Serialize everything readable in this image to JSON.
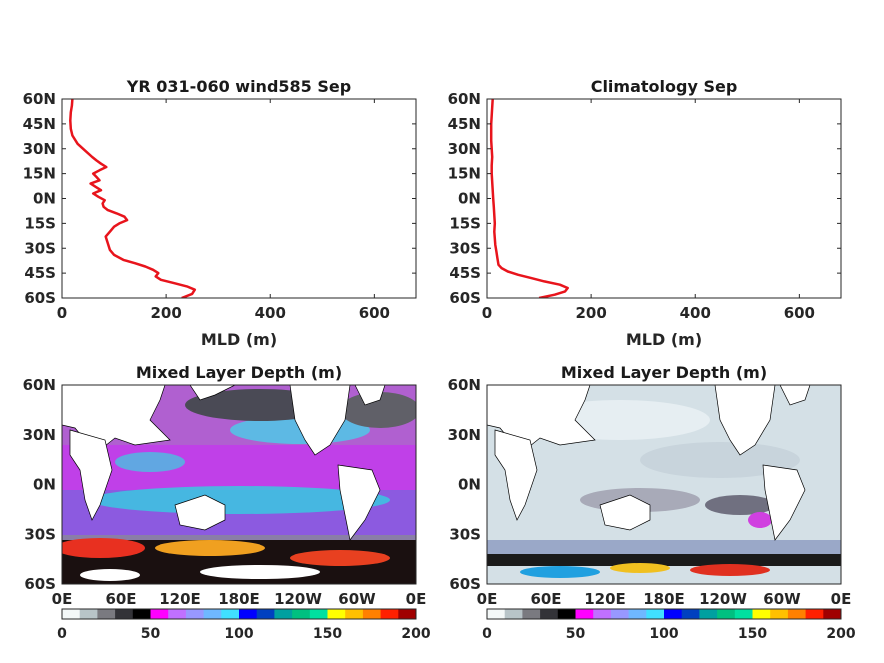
{
  "chart_data": [
    {
      "type": "line",
      "title": "YR 031-060 wind585 Sep",
      "xlabel": "MLD (m)",
      "ylabel": "",
      "xlim": [
        0,
        680
      ],
      "ylim": [
        -60,
        60
      ],
      "xticks": [
        "0",
        "200",
        "400",
        "600"
      ],
      "yticks": [
        "60N",
        "45N",
        "30N",
        "15N",
        "0N",
        "15S",
        "30S",
        "45S",
        "60S"
      ],
      "grid": false,
      "series": [
        {
          "color": "#e8141c",
          "x": [
            230,
            250,
            255,
            240,
            215,
            190,
            180,
            185,
            175,
            160,
            140,
            118,
            100,
            92,
            88,
            84,
            92,
            100,
            110,
            125,
            120,
            105,
            88,
            80,
            78,
            82,
            70,
            60,
            75,
            65,
            55,
            72,
            66,
            60,
            72,
            85,
            75,
            66,
            58,
            44,
            30,
            20,
            17,
            16,
            17,
            19,
            20
          ],
          "y": [
            -60,
            -57.5,
            -55,
            -53,
            -51,
            -49,
            -47,
            -45,
            -43,
            -41,
            -39,
            -37,
            -34,
            -31,
            -27,
            -23,
            -20,
            -17,
            -15,
            -13,
            -11,
            -9,
            -7,
            -5,
            -3,
            -1,
            1,
            3,
            5,
            7,
            9,
            11,
            13,
            15,
            17,
            19,
            21,
            23,
            25,
            29,
            33,
            38,
            42,
            47,
            52,
            56,
            60
          ]
        }
      ]
    },
    {
      "type": "line",
      "title": "Climatology Sep",
      "xlabel": "MLD (m)",
      "ylabel": "",
      "xlim": [
        0,
        680
      ],
      "ylim": [
        -60,
        60
      ],
      "xticks": [
        "0",
        "200",
        "400",
        "600"
      ],
      "yticks": [
        "60N",
        "45N",
        "30N",
        "15N",
        "0N",
        "15S",
        "30S",
        "45S",
        "60S"
      ],
      "grid": false,
      "series": [
        {
          "color": "#e8141c",
          "x": [
            100,
            130,
            150,
            155,
            140,
            110,
            85,
            60,
            40,
            28,
            22,
            20,
            18,
            16,
            15,
            14,
            15,
            14,
            13,
            12,
            11,
            10,
            9,
            9,
            10,
            9,
            8,
            8,
            8,
            9,
            10,
            11
          ],
          "y": [
            -60,
            -58,
            -56,
            -54,
            -52,
            -50,
            -48,
            -46,
            -44,
            -42,
            -40,
            -36,
            -32,
            -28,
            -24,
            -20,
            -15,
            -10,
            -5,
            0,
            5,
            10,
            15,
            20,
            25,
            30,
            35,
            40,
            45,
            50,
            55,
            60
          ]
        }
      ]
    },
    {
      "type": "heatmap",
      "title": "Mixed Layer Depth (m)",
      "xticks": [
        "0E",
        "60E",
        "120E",
        "180E",
        "120W",
        "60W",
        "0E"
      ],
      "yticks": [
        "60N",
        "30N",
        "0N",
        "30S",
        "60S"
      ],
      "colorbar_ticks": [
        "0",
        "50",
        "100",
        "150",
        "200"
      ],
      "value_range": [
        0,
        200
      ]
    },
    {
      "type": "heatmap",
      "title": "Mixed Layer Depth (m)",
      "xticks": [
        "0E",
        "60E",
        "120E",
        "180E",
        "120W",
        "60W",
        "0E"
      ],
      "yticks": [
        "60N",
        "30N",
        "0N",
        "30S",
        "60S"
      ],
      "colorbar_ticks": [
        "0",
        "50",
        "100",
        "150",
        "200"
      ],
      "value_range": [
        0,
        200
      ]
    }
  ]
}
